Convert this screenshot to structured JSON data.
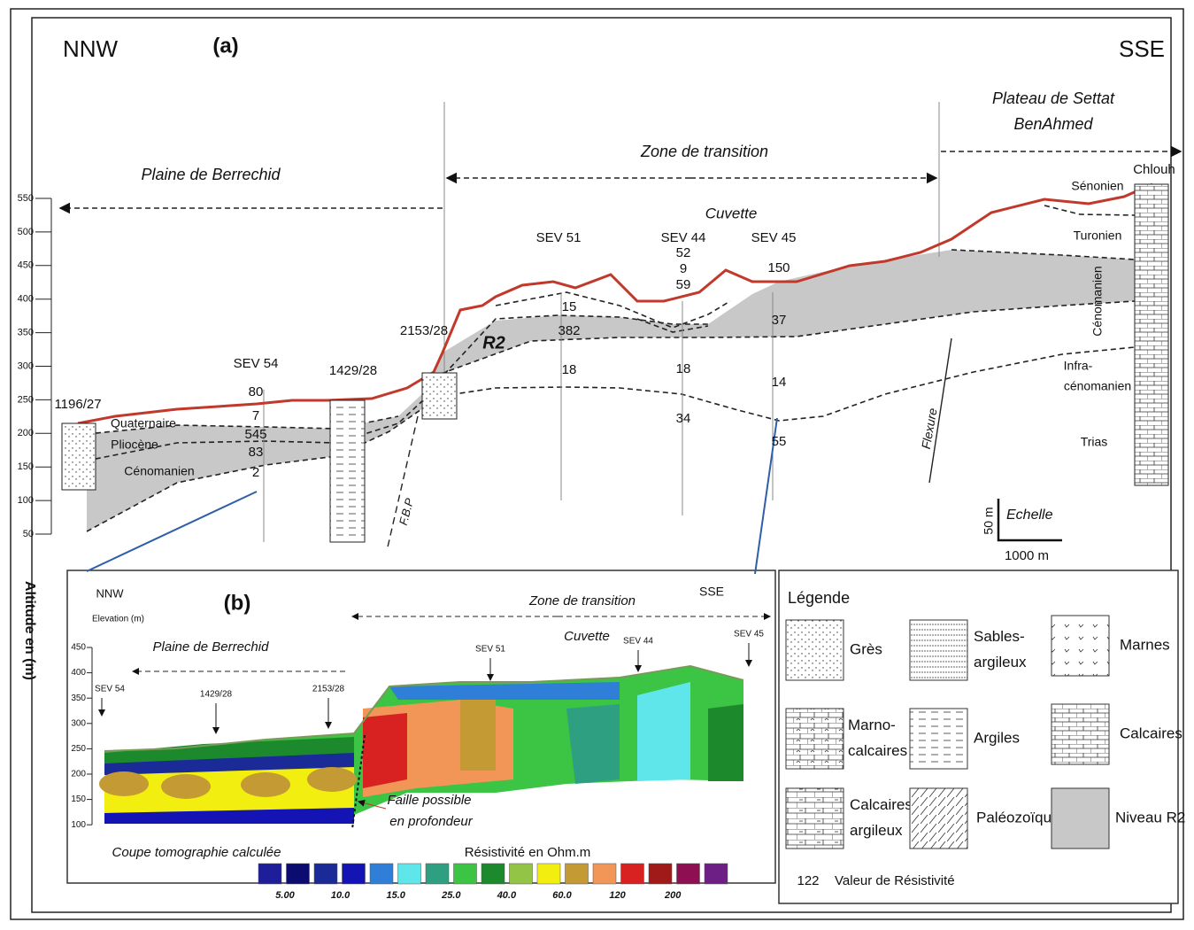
{
  "panel_a": {
    "label": "(a)",
    "left_direction": "NNW",
    "right_direction": "SSE",
    "zones": {
      "plaine": "Plaine de Berrechid",
      "transition": "Zone de transition",
      "plateau": [
        "Plateau de Settat",
        "BenAhmed"
      ],
      "cuvette": "Cuvette"
    },
    "axis_title": "Altitude en (m)",
    "yticks": [
      550,
      500,
      450,
      400,
      350,
      300,
      250,
      200,
      150,
      100,
      50
    ],
    "wells": [
      "1196/27",
      "1429/28",
      "2153/28",
      "Chlouh"
    ],
    "sev": [
      {
        "label": "SEV 54",
        "resistivities": [
          80,
          7,
          545,
          83,
          2
        ]
      },
      {
        "label": "SEV 51",
        "resistivities": [
          15,
          382,
          18
        ]
      },
      {
        "label": "SEV 44",
        "resistivities": [
          52,
          9,
          59,
          18,
          34
        ]
      },
      {
        "label": "SEV 45",
        "resistivities": [
          150,
          37,
          14,
          55
        ]
      }
    ],
    "formations": [
      "Quaternaire",
      "Pliocène",
      "Cénomanien",
      "Sénonien",
      "Turonien",
      "Cénomanien",
      "Infra-",
      "cénomanien",
      "Trias"
    ],
    "annotations": {
      "r2": "R2",
      "fbp": "F.B.P",
      "flexure": "Flexure"
    },
    "scale": {
      "title": "Echelle",
      "vertical": "50 m",
      "horizontal": "1000 m"
    }
  },
  "panel_b": {
    "label": "(b)",
    "left_direction": "NNW",
    "right_direction": "SSE",
    "axis_title": "Elevation (m)",
    "yticks": [
      450,
      400,
      350,
      300,
      250,
      200,
      150,
      100
    ],
    "zones": {
      "plaine": "Plaine de Berrechid",
      "transition": "Zone de transition",
      "cuvette": "Cuvette"
    },
    "points": [
      "SEV 54",
      "1429/28",
      "2153/28",
      "SEV 51",
      "SEV 44",
      "SEV 45"
    ],
    "fault": [
      "Faille possible",
      "en profondeur"
    ],
    "title": "Coupe tomographie calculée",
    "colorbar_title": "Résistivité en Ohm.m",
    "colorbar_colors": [
      "#1e1e9a",
      "#0c0c70",
      "#1a2a96",
      "#1414b4",
      "#2f7fd8",
      "#5fe6ea",
      "#2f9f82",
      "#3cc444",
      "#1c8a2c",
      "#94c446",
      "#f2ee10",
      "#c49a34",
      "#f29658",
      "#d82222",
      "#a01a1a",
      "#8e1052",
      "#6e1f86"
    ],
    "colorbar_labels": [
      "5.00",
      "10.0",
      "15.0",
      "25.0",
      "40.0",
      "60.0",
      "120",
      "200"
    ]
  },
  "legend": {
    "title": "Légende",
    "items": [
      [
        "Grès"
      ],
      [
        "Sables-",
        "argileux"
      ],
      [
        "Marnes"
      ],
      [
        "Marno-",
        "calcaires"
      ],
      [
        "Argiles"
      ],
      [
        "Calcaires"
      ],
      [
        "Calcaires-",
        "argileux"
      ],
      [
        "Paléozoïque"
      ],
      [
        "Niveau R2"
      ]
    ],
    "example_value": 122,
    "example_label": "Valeur de Résistivité"
  }
}
